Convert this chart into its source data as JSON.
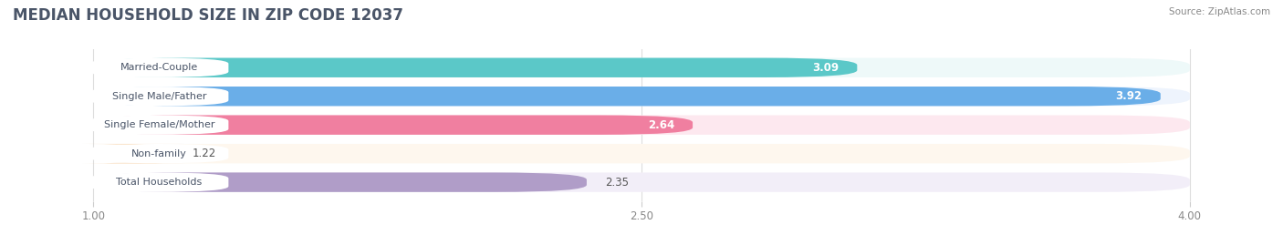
{
  "title": "MEDIAN HOUSEHOLD SIZE IN ZIP CODE 12037",
  "source": "Source: ZipAtlas.com",
  "categories": [
    "Married-Couple",
    "Single Male/Father",
    "Single Female/Mother",
    "Non-family",
    "Total Households"
  ],
  "values": [
    3.09,
    3.92,
    2.64,
    1.22,
    2.35
  ],
  "bar_colors": [
    "#5BC8C8",
    "#6AAEE8",
    "#F07FA0",
    "#F5C894",
    "#B09DC8"
  ],
  "bar_bg_colors": [
    "#EEF9F9",
    "#EEF4FD",
    "#FDE8EF",
    "#FEF7EE",
    "#F2EEF8"
  ],
  "label_bg_color": "#FFFFFF",
  "xlim": [
    0.78,
    4.22
  ],
  "xmin": 1.0,
  "xmax": 4.0,
  "xticks": [
    1.0,
    2.5,
    4.0
  ],
  "xtick_labels": [
    "1.00",
    "2.50",
    "4.00"
  ],
  "title_fontsize": 12,
  "label_fontsize": 8.0,
  "value_fontsize": 8.5,
  "bg_color": "#FFFFFF",
  "title_color": "#4a5568",
  "source_color": "#888888",
  "grid_color": "#DDDDDD"
}
